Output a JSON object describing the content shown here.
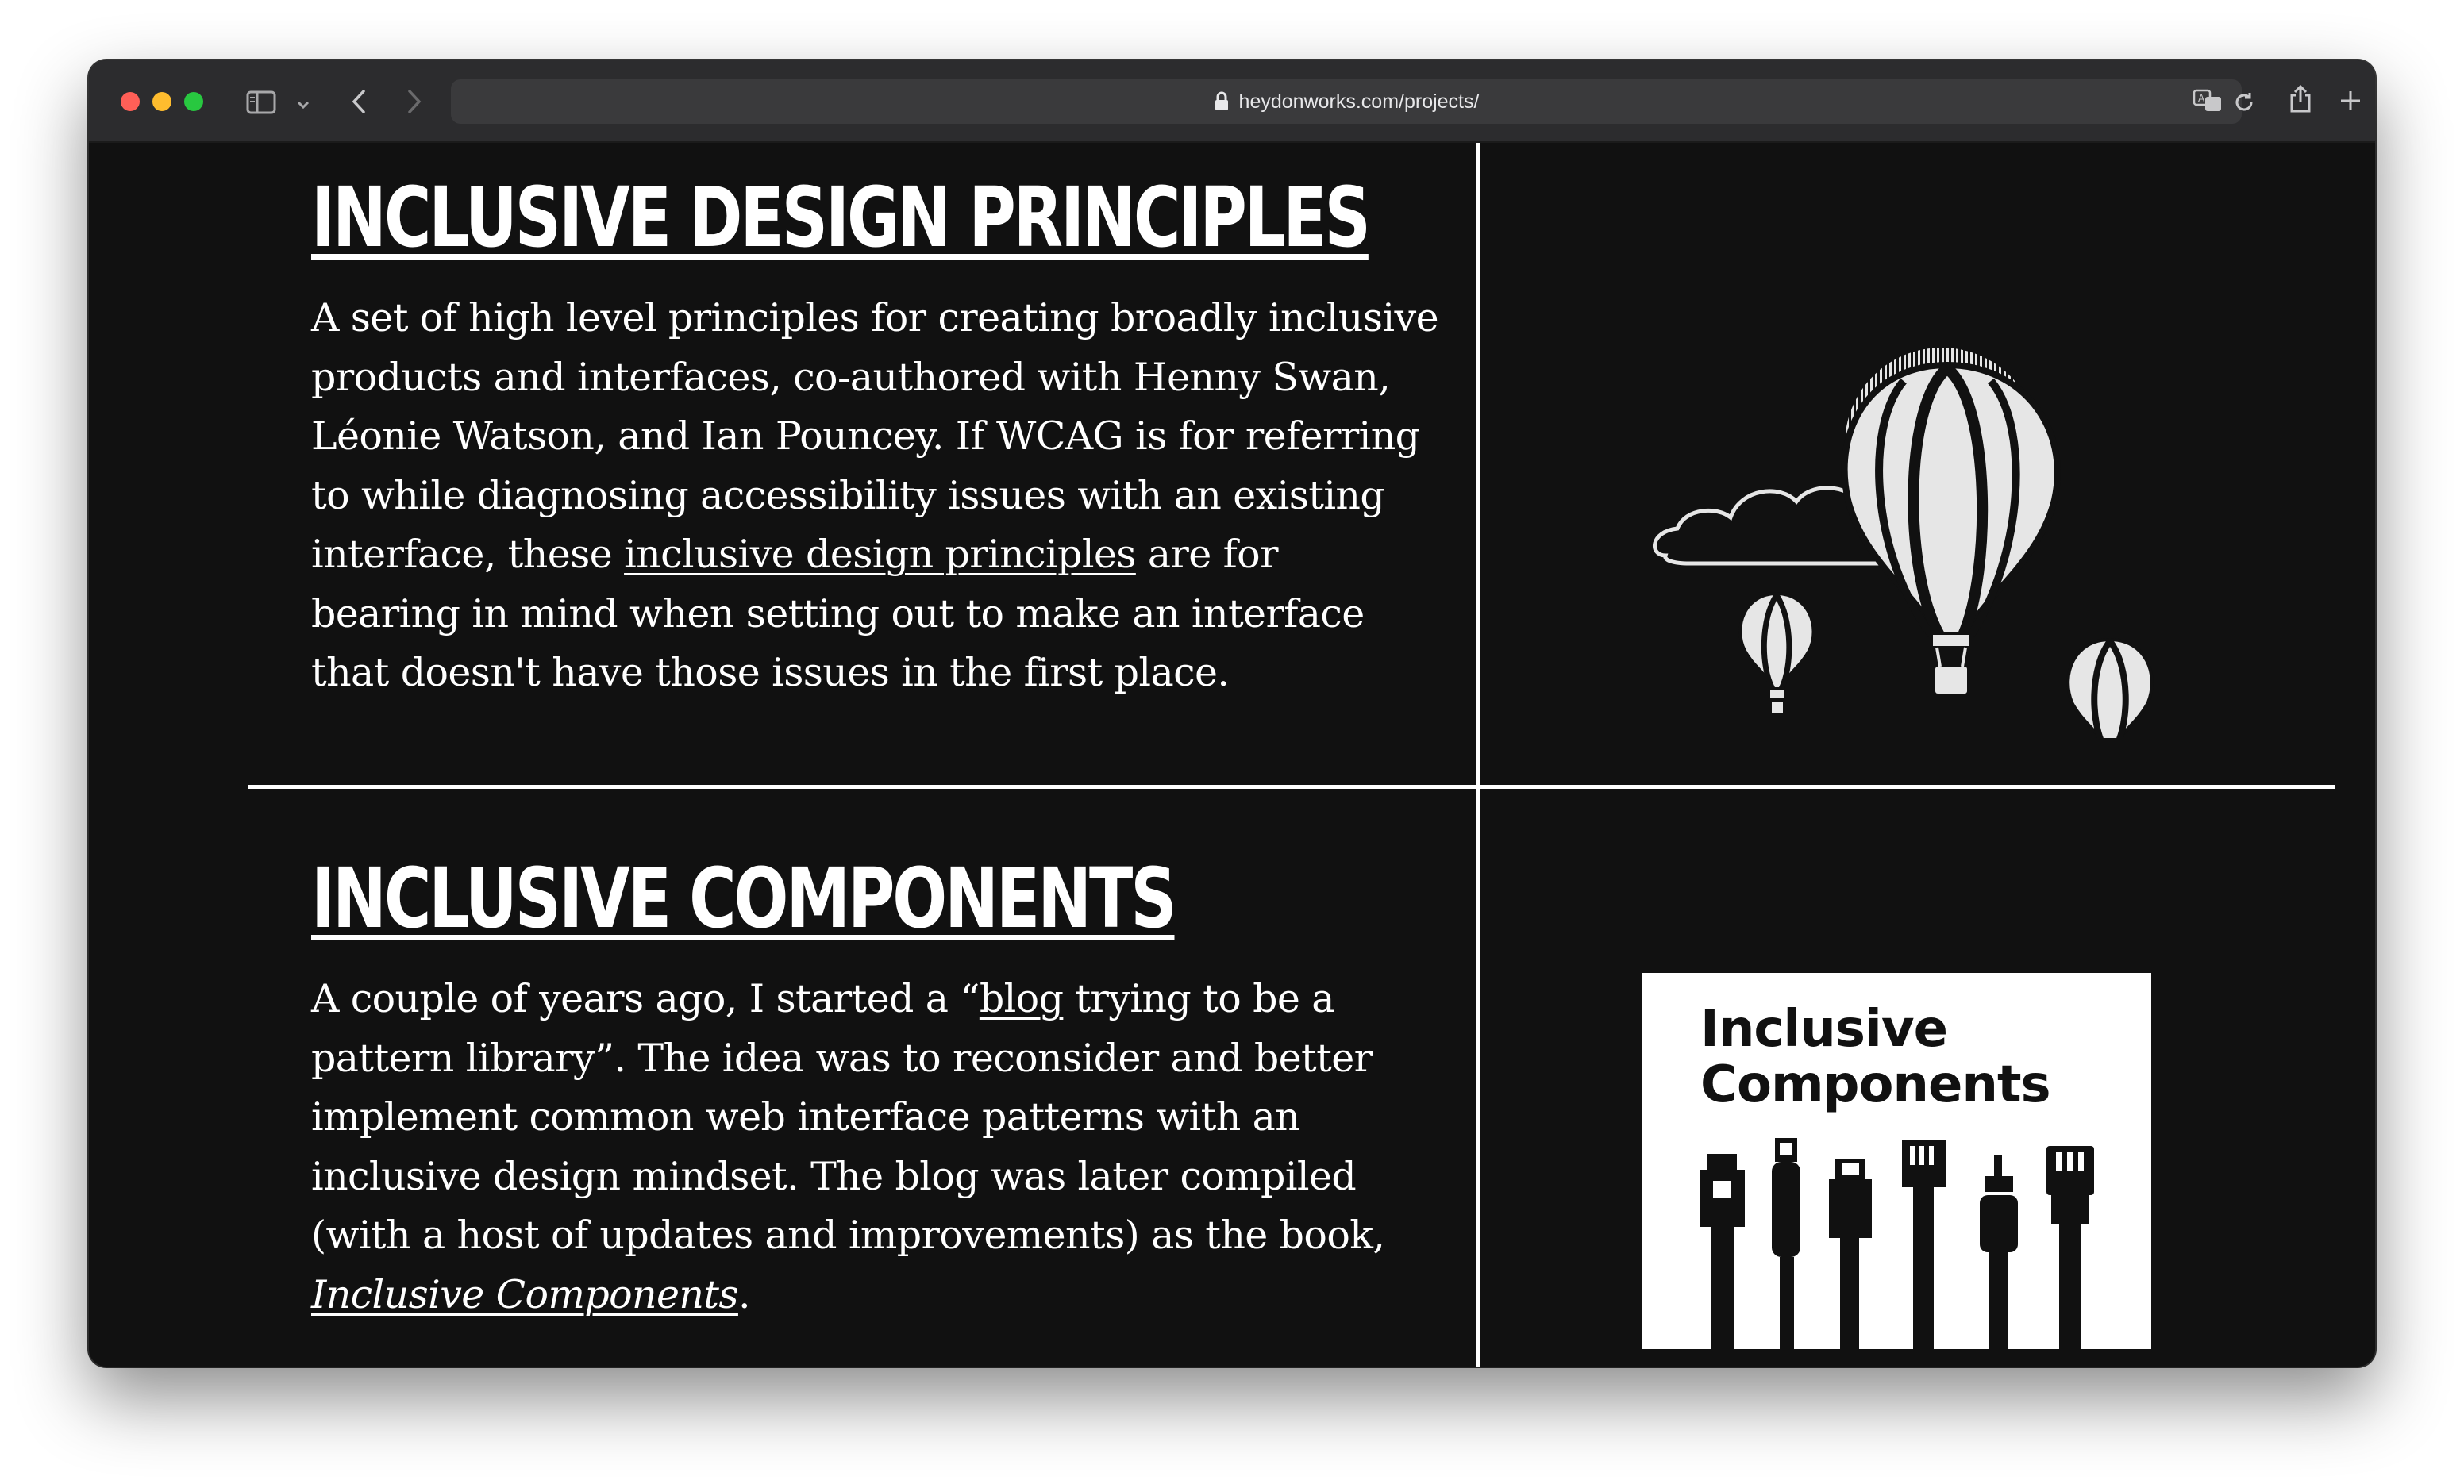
{
  "browser": {
    "url": "heydonworks.com/projects/"
  },
  "projects": [
    {
      "title": "INCLUSIVE DESIGN PRINCIPLES",
      "desc_part1": "A set of high level principles for creating broadly inclusive products and interfaces, co-authored with Henny Swan, Léonie Watson, and Ian Pouncey. If WCAG is for referring to while diagnosing accessibility issues with an existing interface, these ",
      "link_text": "inclusive design principles",
      "desc_part2": " are for bearing in mind when setting out to make an interface that doesn't have those issues in the first place.",
      "image": "hot-air-balloons-illustration"
    },
    {
      "title": "INCLUSIVE COMPONENTS",
      "desc_part1": "A couple of years ago, I started a “",
      "link_text": "blog",
      "desc_part2": " trying to be a pattern library”. The idea was to reconsider and better implement common web interface patterns with an inclusive design mindset. The blog was later compiled (with a host of updates and improvements) as the book, ",
      "book_link": "Inclusive Components",
      "desc_part3": ".",
      "image": "inclusive-components-cover",
      "image_title_line1": "Inclusive",
      "image_title_line2": "Components"
    }
  ],
  "icons": [
    "sidebar-icon",
    "chevron-down-icon",
    "back-icon",
    "forward-icon",
    "lock-icon",
    "translate-icon",
    "reload-icon",
    "share-icon",
    "new-tab-icon"
  ],
  "colors": {
    "page_bg": "#111111",
    "text": "#ffffff",
    "toolbar": "#2c2c2e"
  }
}
